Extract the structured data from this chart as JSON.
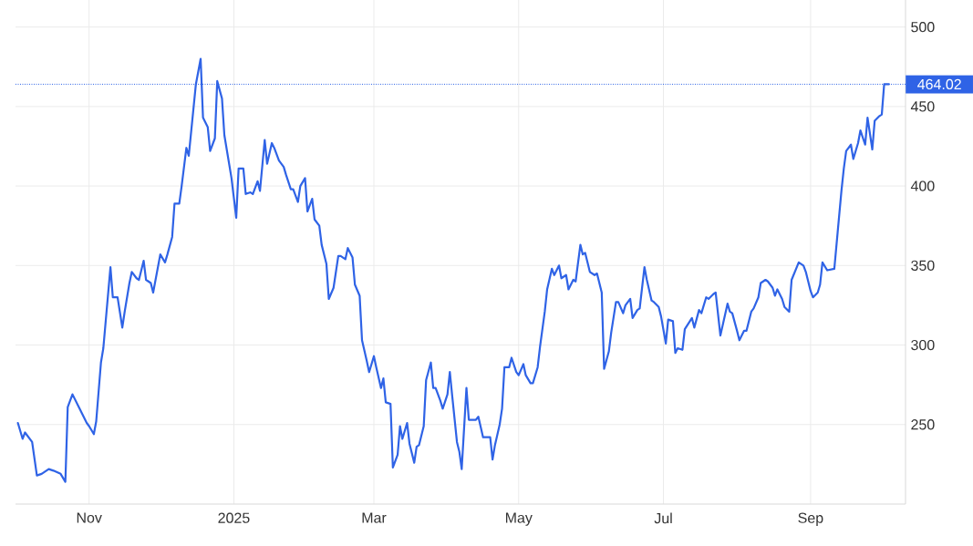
{
  "chart_data": {
    "type": "line",
    "x": [
      "2024-10-02",
      "2024-10-04",
      "2024-10-05",
      "2024-10-08",
      "2024-10-10",
      "2024-10-12",
      "2024-10-15",
      "2024-10-17",
      "2024-10-20",
      "2024-10-22",
      "2024-10-23",
      "2024-10-25",
      "2024-10-28",
      "2024-10-29",
      "2024-10-31",
      "2024-11-01",
      "2024-11-03",
      "2024-11-04",
      "2024-11-06",
      "2024-11-07",
      "2024-11-10",
      "2024-11-11",
      "2024-11-13",
      "2024-11-15",
      "2024-11-16",
      "2024-11-18",
      "2024-11-19",
      "2024-11-21",
      "2024-11-22",
      "2024-11-24",
      "2024-11-25",
      "2024-11-27",
      "2024-11-28",
      "2024-12-01",
      "2024-12-03",
      "2024-12-04",
      "2024-12-06",
      "2024-12-07",
      "2024-12-09",
      "2024-12-10",
      "2024-12-12",
      "2024-12-13",
      "2024-12-14",
      "2024-12-16",
      "2024-12-18",
      "2024-12-19",
      "2024-12-21",
      "2024-12-22",
      "2024-12-24",
      "2024-12-25",
      "2024-12-27",
      "2024-12-28",
      "2024-12-31",
      "2025-01-02",
      "2025-01-03",
      "2025-01-05",
      "2025-01-06",
      "2025-01-08",
      "2025-01-09",
      "2025-01-11",
      "2025-01-12",
      "2025-01-14",
      "2025-01-15",
      "2025-01-17",
      "2025-01-18",
      "2025-01-20",
      "2025-01-22",
      "2025-01-23",
      "2025-01-25",
      "2025-01-26",
      "2025-01-28",
      "2025-01-29",
      "2025-01-31",
      "2025-02-01",
      "2025-02-03",
      "2025-02-04",
      "2025-02-06",
      "2025-02-07",
      "2025-02-09",
      "2025-02-10",
      "2025-02-12",
      "2025-02-14",
      "2025-02-15",
      "2025-02-17",
      "2025-02-18",
      "2025-02-20",
      "2025-02-21",
      "2025-02-23",
      "2025-02-24",
      "2025-02-26",
      "2025-02-27",
      "2025-03-01",
      "2025-03-02",
      "2025-03-04",
      "2025-03-05",
      "2025-03-06",
      "2025-03-08",
      "2025-03-09",
      "2025-03-11",
      "2025-03-12",
      "2025-03-13",
      "2025-03-15",
      "2025-03-16",
      "2025-03-18",
      "2025-03-19",
      "2025-03-20",
      "2025-03-22",
      "2025-03-23",
      "2025-03-25",
      "2025-03-26",
      "2025-03-27",
      "2025-03-29",
      "2025-03-30",
      "2025-04-01",
      "2025-04-02",
      "2025-04-03",
      "2025-04-05",
      "2025-04-06",
      "2025-04-07",
      "2025-04-09",
      "2025-04-10",
      "2025-04-13",
      "2025-04-14",
      "2025-04-16",
      "2025-04-19",
      "2025-04-20",
      "2025-04-21",
      "2025-04-23",
      "2025-04-24",
      "2025-04-25",
      "2025-04-27",
      "2025-04-28",
      "2025-04-30",
      "2025-05-01",
      "2025-05-03",
      "2025-05-04",
      "2025-05-06",
      "2025-05-07",
      "2025-05-09",
      "2025-05-10",
      "2025-05-12",
      "2025-05-13",
      "2025-05-15",
      "2025-05-16",
      "2025-05-18",
      "2025-05-19",
      "2025-05-21",
      "2025-05-22",
      "2025-05-24",
      "2025-05-25",
      "2025-05-27",
      "2025-05-28",
      "2025-05-29",
      "2025-05-31",
      "2025-06-02",
      "2025-06-03",
      "2025-06-05",
      "2025-06-06",
      "2025-06-08",
      "2025-06-09",
      "2025-06-11",
      "2025-06-12",
      "2025-06-14",
      "2025-06-15",
      "2025-06-17",
      "2025-06-18",
      "2025-06-20",
      "2025-06-21",
      "2025-06-23",
      "2025-06-24",
      "2025-06-26",
      "2025-06-27",
      "2025-06-29",
      "2025-06-30",
      "2025-07-02",
      "2025-07-03",
      "2025-07-05",
      "2025-07-06",
      "2025-07-07",
      "2025-07-09",
      "2025-07-10",
      "2025-07-13",
      "2025-07-14",
      "2025-07-16",
      "2025-07-17",
      "2025-07-19",
      "2025-07-20",
      "2025-07-22",
      "2025-07-23",
      "2025-07-25",
      "2025-07-28",
      "2025-07-29",
      "2025-07-30",
      "2025-08-01",
      "2025-08-02",
      "2025-08-04",
      "2025-08-05",
      "2025-08-07",
      "2025-08-08",
      "2025-08-10",
      "2025-08-11",
      "2025-08-13",
      "2025-08-14",
      "2025-08-16",
      "2025-08-17",
      "2025-08-18",
      "2025-08-20",
      "2025-08-21",
      "2025-08-23",
      "2025-08-24",
      "2025-08-27",
      "2025-08-29",
      "2025-08-30",
      "2025-09-01",
      "2025-09-02",
      "2025-09-04",
      "2025-09-05",
      "2025-09-06",
      "2025-09-08",
      "2025-09-11",
      "2025-09-14",
      "2025-09-15",
      "2025-09-16",
      "2025-09-18",
      "2025-09-19",
      "2025-09-21",
      "2025-09-22",
      "2025-09-24",
      "2025-09-25",
      "2025-09-27",
      "2025-09-28",
      "2025-09-30",
      "2025-10-01",
      "2025-10-02",
      "2025-10-04"
    ],
    "values": [
      251,
      241,
      245,
      239,
      218,
      219,
      222,
      221,
      219,
      214,
      261,
      269,
      260,
      257,
      251,
      249,
      244,
      252,
      289,
      298,
      349,
      330,
      330,
      311,
      321,
      339,
      346,
      342,
      341,
      353,
      341,
      339,
      333,
      357,
      352,
      357,
      368,
      389,
      389,
      400,
      424,
      419,
      434,
      464,
      480,
      443,
      437,
      422,
      430,
      466,
      455,
      432,
      405,
      380,
      411,
      411,
      395,
      396,
      395,
      403,
      397,
      429,
      414,
      427,
      424,
      416,
      412,
      407,
      398,
      398,
      390,
      400,
      405,
      384,
      392,
      379,
      375,
      363,
      351,
      329,
      336,
      356,
      356,
      354,
      361,
      355,
      338,
      331,
      303,
      290,
      283,
      293,
      286,
      273,
      279,
      264,
      263,
      223,
      231,
      249,
      241,
      251,
      238,
      226,
      236,
      237,
      249,
      278,
      289,
      273,
      273,
      265,
      260,
      269,
      283,
      268,
      239,
      233,
      222,
      273,
      253,
      253,
      255,
      242,
      242,
      228,
      237,
      250,
      260,
      286,
      286,
      292,
      283,
      281,
      288,
      281,
      276,
      276,
      286,
      299,
      321,
      335,
      348,
      344,
      350,
      342,
      344,
      335,
      341,
      340,
      363,
      357,
      358,
      346,
      344,
      345,
      333,
      285,
      296,
      308,
      327,
      327,
      320,
      325,
      329,
      317,
      322,
      323,
      349,
      341,
      328,
      327,
      324,
      318,
      301,
      316,
      315,
      295,
      298,
      297,
      310,
      317,
      311,
      322,
      320,
      330,
      329,
      332,
      333,
      306,
      326,
      321,
      320,
      309,
      303,
      309,
      309,
      321,
      323,
      330,
      339,
      341,
      340,
      336,
      331,
      335,
      329,
      324,
      321,
      341,
      352,
      350,
      346,
      334,
      330,
      333,
      338,
      352,
      347,
      348,
      397,
      411,
      422,
      426,
      417,
      427,
      435,
      426,
      443,
      423,
      441,
      444,
      445,
      464,
      464
    ],
    "color": "#2f63e6",
    "xlim": [
      "2024-10-01",
      "2025-10-11"
    ],
    "xticks": [
      {
        "value": "2024-11-01",
        "label": "Nov"
      },
      {
        "value": "2025-01-01",
        "label": "2025"
      },
      {
        "value": "2025-03-01",
        "label": "Mar"
      },
      {
        "value": "2025-05-01",
        "label": "May"
      },
      {
        "value": "2025-07-01",
        "label": "Jul"
      },
      {
        "value": "2025-09-01",
        "label": "Sep"
      }
    ],
    "ylim": [
      200,
      517
    ],
    "yticks": [
      250,
      300,
      350,
      400,
      450,
      500
    ],
    "grid": true,
    "ref_lines": [
      {
        "axis": "y",
        "value": 464.02,
        "label": "464.02",
        "color": "#2f63e6",
        "line_style": "dotted"
      }
    ]
  }
}
